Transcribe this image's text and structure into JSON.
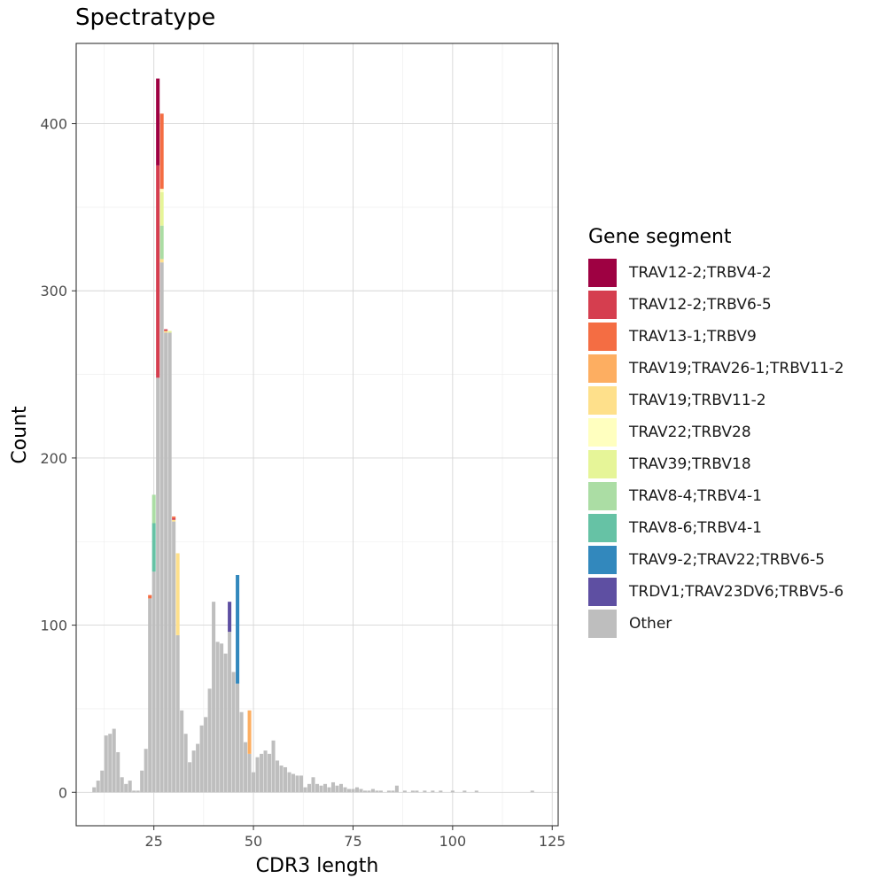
{
  "chart_data": {
    "type": "bar",
    "title": "Spectratype",
    "xlabel": "CDR3 length",
    "ylabel": "Count",
    "xlim": [
      5.5,
      126.5
    ],
    "ylim": [
      -20,
      448
    ],
    "xticks": [
      25,
      50,
      75,
      100,
      125
    ],
    "yticks": [
      0,
      100,
      200,
      300,
      400
    ],
    "grid": true,
    "legend": {
      "title": "Gene segment",
      "placement": "right",
      "entries": [
        {
          "name": "TRAV12-2;TRBV4-2",
          "color": "#9e0142"
        },
        {
          "name": "TRAV12-2;TRBV6-5",
          "color": "#d53e4f"
        },
        {
          "name": "TRAV13-1;TRBV9",
          "color": "#f46d43"
        },
        {
          "name": "TRAV19;TRAV26-1;TRBV11-2",
          "color": "#fdae61"
        },
        {
          "name": "TRAV19;TRBV11-2",
          "color": "#fee08b"
        },
        {
          "name": "TRAV22;TRBV28",
          "color": "#ffffbf"
        },
        {
          "name": "TRAV39;TRBV18",
          "color": "#e6f598"
        },
        {
          "name": "TRAV8-4;TRBV4-1",
          "color": "#abdda4"
        },
        {
          "name": "TRAV8-6;TRBV4-1",
          "color": "#66c2a5"
        },
        {
          "name": "TRAV9-2;TRAV22;TRBV6-5",
          "color": "#3288bd"
        },
        {
          "name": "TRDV1;TRAV23DV6;TRBV5-6",
          "color": "#5e4fa2"
        },
        {
          "name": "Other",
          "color": "#bebebe"
        }
      ]
    },
    "other_counts": [
      {
        "x": 10,
        "y": 3
      },
      {
        "x": 11,
        "y": 7
      },
      {
        "x": 12,
        "y": 13
      },
      {
        "x": 13,
        "y": 34
      },
      {
        "x": 14,
        "y": 35
      },
      {
        "x": 15,
        "y": 38
      },
      {
        "x": 16,
        "y": 24
      },
      {
        "x": 17,
        "y": 9
      },
      {
        "x": 18,
        "y": 5
      },
      {
        "x": 19,
        "y": 7
      },
      {
        "x": 20,
        "y": 1
      },
      {
        "x": 21,
        "y": 1
      },
      {
        "x": 22,
        "y": 13
      },
      {
        "x": 23,
        "y": 26
      },
      {
        "x": 24,
        "y": 116
      },
      {
        "x": 25,
        "y": 132
      },
      {
        "x": 26,
        "y": 248
      },
      {
        "x": 27,
        "y": 317
      },
      {
        "x": 28,
        "y": 275
      },
      {
        "x": 29,
        "y": 275
      },
      {
        "x": 30,
        "y": 162
      },
      {
        "x": 31,
        "y": 94
      },
      {
        "x": 32,
        "y": 49
      },
      {
        "x": 33,
        "y": 35
      },
      {
        "x": 34,
        "y": 18
      },
      {
        "x": 35,
        "y": 25
      },
      {
        "x": 36,
        "y": 29
      },
      {
        "x": 37,
        "y": 40
      },
      {
        "x": 38,
        "y": 45
      },
      {
        "x": 39,
        "y": 62
      },
      {
        "x": 40,
        "y": 114
      },
      {
        "x": 41,
        "y": 90
      },
      {
        "x": 42,
        "y": 89
      },
      {
        "x": 43,
        "y": 83
      },
      {
        "x": 44,
        "y": 96
      },
      {
        "x": 45,
        "y": 72
      },
      {
        "x": 46,
        "y": 65
      },
      {
        "x": 47,
        "y": 48
      },
      {
        "x": 48,
        "y": 30
      },
      {
        "x": 49,
        "y": 23
      },
      {
        "x": 50,
        "y": 12
      },
      {
        "x": 51,
        "y": 21
      },
      {
        "x": 52,
        "y": 23
      },
      {
        "x": 53,
        "y": 25
      },
      {
        "x": 54,
        "y": 23
      },
      {
        "x": 55,
        "y": 31
      },
      {
        "x": 56,
        "y": 19
      },
      {
        "x": 57,
        "y": 16
      },
      {
        "x": 58,
        "y": 15
      },
      {
        "x": 59,
        "y": 12
      },
      {
        "x": 60,
        "y": 11
      },
      {
        "x": 61,
        "y": 10
      },
      {
        "x": 62,
        "y": 10
      },
      {
        "x": 63,
        "y": 3
      },
      {
        "x": 64,
        "y": 5
      },
      {
        "x": 65,
        "y": 9
      },
      {
        "x": 66,
        "y": 5
      },
      {
        "x": 67,
        "y": 4
      },
      {
        "x": 68,
        "y": 5
      },
      {
        "x": 69,
        "y": 3
      },
      {
        "x": 70,
        "y": 6
      },
      {
        "x": 71,
        "y": 4
      },
      {
        "x": 72,
        "y": 5
      },
      {
        "x": 73,
        "y": 3
      },
      {
        "x": 74,
        "y": 2
      },
      {
        "x": 75,
        "y": 2
      },
      {
        "x": 76,
        "y": 3
      },
      {
        "x": 77,
        "y": 2
      },
      {
        "x": 78,
        "y": 1
      },
      {
        "x": 79,
        "y": 1
      },
      {
        "x": 80,
        "y": 2
      },
      {
        "x": 81,
        "y": 1
      },
      {
        "x": 82,
        "y": 1
      },
      {
        "x": 84,
        "y": 1
      },
      {
        "x": 85,
        "y": 1
      },
      {
        "x": 86,
        "y": 4
      },
      {
        "x": 88,
        "y": 1
      },
      {
        "x": 90,
        "y": 1
      },
      {
        "x": 91,
        "y": 1
      },
      {
        "x": 93,
        "y": 1
      },
      {
        "x": 95,
        "y": 1
      },
      {
        "x": 97,
        "y": 1
      },
      {
        "x": 100,
        "y": 1
      },
      {
        "x": 103,
        "y": 1
      },
      {
        "x": 106,
        "y": 1
      },
      {
        "x": 120,
        "y": 1
      }
    ],
    "segment_counts": [
      {
        "x": 24,
        "series": "TRAV13-1;TRBV9",
        "y": 2
      },
      {
        "x": 25,
        "series": "TRAV8-6;TRBV4-1",
        "y": 29
      },
      {
        "x": 25,
        "series": "TRAV8-4;TRBV4-1",
        "y": 17
      },
      {
        "x": 26,
        "series": "TRAV12-2;TRBV6-5",
        "y": 127
      },
      {
        "x": 26,
        "series": "TRAV12-2;TRBV4-2",
        "y": 52
      },
      {
        "x": 27,
        "series": "TRAV19;TRBV11-2",
        "y": 2
      },
      {
        "x": 27,
        "series": "TRAV8-4;TRBV4-1",
        "y": 20
      },
      {
        "x": 27,
        "series": "TRAV39;TRBV18",
        "y": 20
      },
      {
        "x": 27,
        "series": "TRAV22;TRBV28",
        "y": 2
      },
      {
        "x": 27,
        "series": "TRAV13-1;TRBV9",
        "y": 45
      },
      {
        "x": 28,
        "series": "TRAV19;TRBV11-2",
        "y": 1
      },
      {
        "x": 28,
        "series": "TRAV12-2;TRBV6-5",
        "y": 1
      },
      {
        "x": 29,
        "series": "TRAV39;TRBV18",
        "y": 1
      },
      {
        "x": 30,
        "series": "TRAV19;TRBV11-2",
        "y": 1
      },
      {
        "x": 30,
        "series": "TRAV12-2;TRBV6-5",
        "y": 1
      },
      {
        "x": 30,
        "series": "TRAV13-1;TRBV9",
        "y": 1
      },
      {
        "x": 31,
        "series": "TRAV19;TRBV11-2",
        "y": 49
      },
      {
        "x": 44,
        "series": "TRDV1;TRAV23DV6;TRBV5-6",
        "y": 18
      },
      {
        "x": 46,
        "series": "TRAV9-2;TRAV22;TRBV6-5",
        "y": 65
      },
      {
        "x": 49,
        "series": "TRAV19;TRAV26-1;TRBV11-2",
        "y": 26
      }
    ]
  }
}
